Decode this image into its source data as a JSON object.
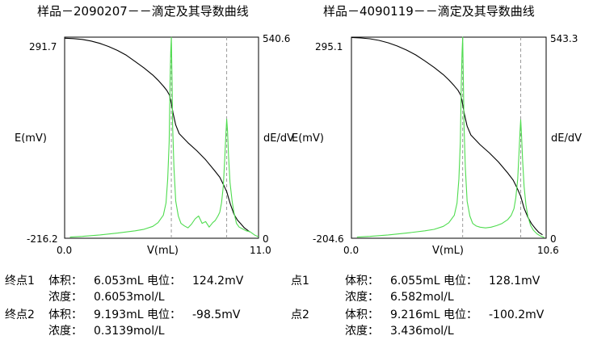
{
  "panels": [
    {
      "title": "样品－2090207－－滴定及其导数曲线",
      "endpoints": [
        {
          "label": "终点1",
          "vol_label": "体积：",
          "volume": "6.053mL",
          "pot_label": "电位：",
          "potential": "124.2mV",
          "conc_label": "浓度：",
          "conc": "0.6053mol/L"
        },
        {
          "label": "终点2",
          "vol_label": "体积：",
          "volume": "9.193mL",
          "pot_label": "电位：",
          "potential": "-98.5mV",
          "conc_label": "浓度：",
          "conc": "0.3139mol/L"
        }
      ]
    },
    {
      "title": "样品－4090119－－滴定及其导数曲线",
      "endpoints": [
        {
          "label": "点1",
          "vol_label": "体积：",
          "volume": "6.055mL",
          "pot_label": "电位：",
          "potential": "128.1mV",
          "conc_label": "浓度：",
          "conc": "6.582mol/L"
        },
        {
          "label": "点2",
          "vol_label": "体积：",
          "volume": "9.216mL",
          "pot_label": "电位：",
          "potential": "-100.2mV",
          "conc_label": "浓度：",
          "conc": "3.436mol/L"
        }
      ]
    }
  ],
  "chart_data": [
    {
      "type": "line",
      "title": "样品－2090207－－滴定及其导数曲线",
      "xlabel": "V(mL)",
      "ylabel_left": "E(mV)",
      "ylabel_right": "dE/dV",
      "xlim": [
        0.0,
        11.0
      ],
      "ylim_left": [
        -216.2,
        291.7
      ],
      "ylim_right": [
        0,
        540.6
      ],
      "x_tick_labels": [
        "0.0",
        "11.0"
      ],
      "y_left_tick_labels": [
        "291.7",
        "-216.2"
      ],
      "y_right_tick_labels": [
        "540.6",
        "0"
      ],
      "endpoint_lines_x": [
        6.053,
        9.193
      ],
      "series": [
        {
          "axis": "left",
          "color": "#000000",
          "x": [
            0,
            0.5,
            1.0,
            1.5,
            2.0,
            2.5,
            3.0,
            3.5,
            4.0,
            4.5,
            5.0,
            5.3,
            5.6,
            5.8,
            5.95,
            6.053,
            6.15,
            6.3,
            6.5,
            7.0,
            7.5,
            8.0,
            8.5,
            8.8,
            9.0,
            9.193,
            9.4,
            9.6,
            9.8,
            10.0,
            10.2,
            10.5
          ],
          "y": [
            289,
            288,
            286,
            282,
            276,
            268,
            258,
            246,
            230,
            214,
            196,
            183,
            168,
            157,
            145,
            124,
            100,
            70,
            48,
            25,
            5,
            -18,
            -45,
            -62,
            -80,
            -98.5,
            -130,
            -155,
            -170,
            -180,
            -190,
            -200
          ]
        },
        {
          "axis": "right",
          "color": "#4fdc4f",
          "x": [
            0.3,
            1.0,
            2.0,
            3.0,
            4.0,
            4.5,
            5.0,
            5.3,
            5.6,
            5.75,
            5.85,
            5.93,
            5.98,
            6.02,
            6.053,
            6.09,
            6.13,
            6.2,
            6.3,
            6.45,
            6.6,
            6.8,
            7.0,
            7.2,
            7.4,
            7.6,
            7.8,
            8.0,
            8.2,
            8.4,
            8.55,
            8.7,
            8.8,
            8.9,
            9.0,
            9.08,
            9.15,
            9.193,
            9.24,
            9.3,
            9.38,
            9.5,
            9.6,
            9.75,
            9.9,
            10.1,
            10.3,
            10.5,
            10.8,
            11.0
          ],
          "y": [
            3,
            5,
            9,
            14,
            20,
            24,
            32,
            42,
            62,
            95,
            160,
            260,
            420,
            500,
            540,
            430,
            300,
            190,
            100,
            60,
            40,
            33,
            28,
            38,
            52,
            60,
            40,
            45,
            30,
            42,
            48,
            60,
            70,
            95,
            140,
            210,
            280,
            320,
            290,
            220,
            150,
            100,
            70,
            40,
            30,
            25,
            20,
            18,
            8,
            4
          ]
        }
      ]
    },
    {
      "type": "line",
      "title": "样品－4090119－－滴定及其导数曲线",
      "xlabel": "V(mL)",
      "ylabel_left": "E(mV)",
      "ylabel_right": "dE/dV",
      "xlim": [
        0.0,
        10.6
      ],
      "ylim_left": [
        -204.6,
        295.1
      ],
      "ylim_right": [
        0,
        543.3
      ],
      "x_tick_labels": [
        "0.0",
        "10.6"
      ],
      "y_left_tick_labels": [
        "295.1",
        "-204.6"
      ],
      "y_right_tick_labels": [
        "543.3",
        "0"
      ],
      "endpoint_lines_x": [
        6.055,
        9.216
      ],
      "series": [
        {
          "axis": "left",
          "color": "#000000",
          "x": [
            0,
            0.5,
            1.0,
            1.5,
            2.0,
            2.5,
            3.0,
            3.5,
            4.0,
            4.5,
            5.0,
            5.3,
            5.6,
            5.8,
            5.95,
            6.055,
            6.15,
            6.3,
            6.5,
            7.0,
            7.5,
            8.0,
            8.5,
            8.8,
            9.0,
            9.216,
            9.4,
            9.6,
            9.8,
            10.0,
            10.2,
            10.4
          ],
          "y": [
            294,
            293,
            291,
            287,
            281,
            273,
            263,
            251,
            236,
            220,
            202,
            189,
            174,
            163,
            151,
            128,
            104,
            74,
            52,
            28,
            8,
            -15,
            -42,
            -60,
            -78,
            -100.2,
            -130,
            -152,
            -168,
            -180,
            -190,
            -196
          ]
        },
        {
          "axis": "right",
          "color": "#4fdc4f",
          "x": [
            0.3,
            1.0,
            2.0,
            3.0,
            4.0,
            4.5,
            5.0,
            5.3,
            5.6,
            5.75,
            5.85,
            5.93,
            5.98,
            6.02,
            6.055,
            6.09,
            6.13,
            6.2,
            6.3,
            6.45,
            6.6,
            6.8,
            7.0,
            7.3,
            7.6,
            7.9,
            8.2,
            8.5,
            8.7,
            8.85,
            8.95,
            9.05,
            9.12,
            9.18,
            9.216,
            9.26,
            9.32,
            9.4,
            9.5,
            9.6,
            9.75,
            9.9,
            10.1,
            10.3,
            10.5
          ],
          "y": [
            3,
            5,
            9,
            14,
            20,
            24,
            32,
            42,
            62,
            95,
            160,
            260,
            420,
            500,
            543,
            430,
            300,
            190,
            100,
            60,
            40,
            33,
            30,
            28,
            30,
            34,
            40,
            50,
            62,
            80,
            110,
            160,
            230,
            290,
            320,
            280,
            210,
            140,
            90,
            60,
            35,
            22,
            12,
            6,
            2
          ]
        }
      ]
    }
  ]
}
